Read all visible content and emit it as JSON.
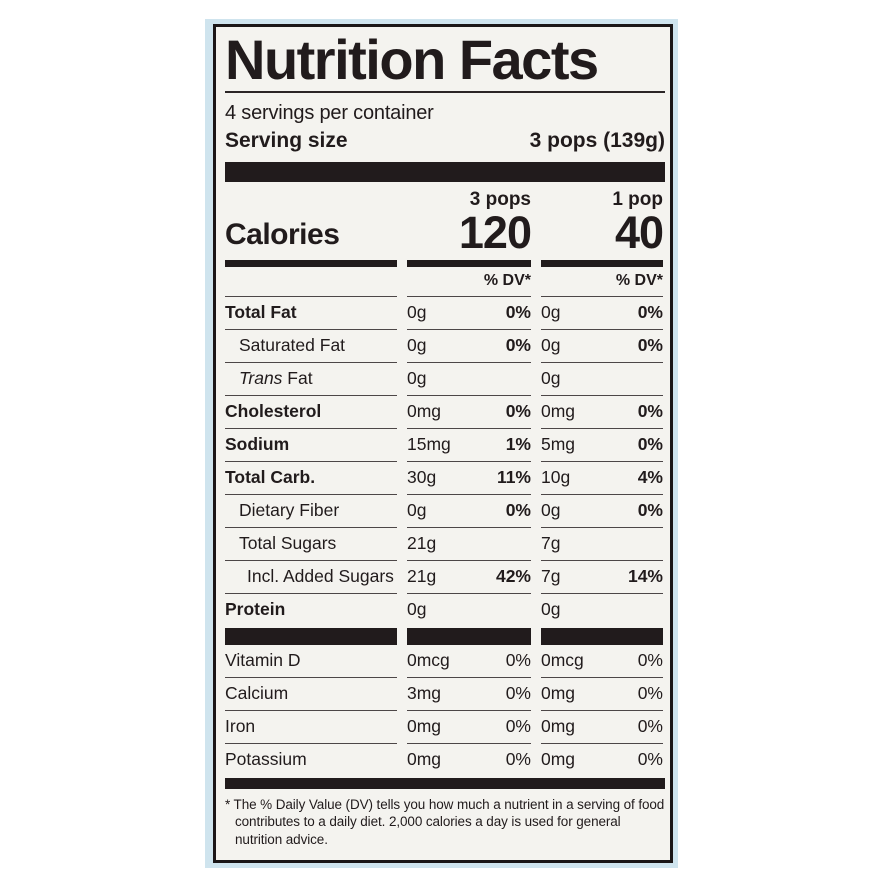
{
  "colors": {
    "page_bg": "#ffffff",
    "label_bg": "#f4f3ef",
    "ink": "#211b1c",
    "edge_blue": "#cfe4ee"
  },
  "label": {
    "title": "Nutrition Facts",
    "servings_per_container": "4 servings per container",
    "serving_size_label": "Serving size",
    "serving_size_value": "3 pops (139g)",
    "column_headers": [
      "3 pops",
      "1 pop"
    ],
    "calories_label": "Calories",
    "calories": [
      "120",
      "40"
    ],
    "dv_header_col1": "% DV*",
    "dv_header_col2": "% DV*",
    "rows": [
      {
        "name": "Total Fat",
        "c1": "0g",
        "p1": "0%",
        "c2": "0g",
        "p2": "0%"
      },
      {
        "name": "Saturated Fat",
        "c1": "0g",
        "p1": "0%",
        "c2": "0g",
        "p2": "0%"
      },
      {
        "name_italic": "Trans",
        "name_rest": " Fat",
        "c1": "0g",
        "p1": "",
        "c2": "0g",
        "p2": ""
      },
      {
        "name": "Cholesterol",
        "c1": "0mg",
        "p1": "0%",
        "c2": "0mg",
        "p2": "0%"
      },
      {
        "name": "Sodium",
        "c1": "15mg",
        "p1": "1%",
        "c2": "5mg",
        "p2": "0%"
      },
      {
        "name": "Total Carb.",
        "c1": "30g",
        "p1": "11%",
        "c2": "10g",
        "p2": "4%"
      },
      {
        "name": "Dietary Fiber",
        "c1": "0g",
        "p1": "0%",
        "c2": "0g",
        "p2": "0%"
      },
      {
        "name": "Total Sugars",
        "c1": "21g",
        "p1": "",
        "c2": "7g",
        "p2": ""
      },
      {
        "name": "Incl. Added Sugars",
        "c1": "21g",
        "p1": "42%",
        "c2": "7g",
        "p2": "14%"
      },
      {
        "name": "Protein",
        "c1": "0g",
        "p1": "",
        "c2": "0g",
        "p2": ""
      }
    ],
    "vitamins": [
      {
        "name": "Vitamin D",
        "c1": "0mcg",
        "p1": "0%",
        "c2": "0mcg",
        "p2": "0%"
      },
      {
        "name": "Calcium",
        "c1": "3mg",
        "p1": "0%",
        "c2": "0mg",
        "p2": "0%"
      },
      {
        "name": "Iron",
        "c1": "0mg",
        "p1": "0%",
        "c2": "0mg",
        "p2": "0%"
      },
      {
        "name": "Potassium",
        "c1": "0mg",
        "p1": "0%",
        "c2": "0mg",
        "p2": "0%"
      }
    ],
    "footnote": "* The % Daily Value (DV) tells you how much a nutrient in a serving of food contributes to a daily diet. 2,000 calories a day is used for general nutrition advice."
  }
}
